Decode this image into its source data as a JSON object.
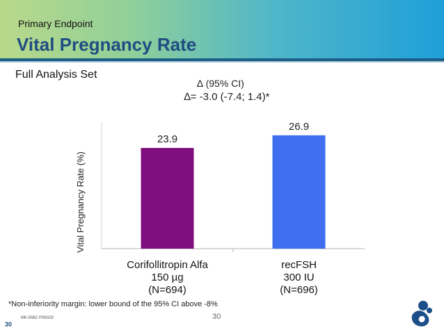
{
  "header": {
    "subtitle": "Primary Endpoint",
    "title": "Vital Pregnancy Rate"
  },
  "analysis_set": "Full Analysis Set",
  "delta": {
    "ci_label": "∆ (95% CI)",
    "value_label": "∆= -3.0 (-7.4; 1.4)*"
  },
  "chart_data": {
    "type": "bar",
    "title": "",
    "xlabel": "",
    "ylabel": "Vital Pregnancy Rate (%)",
    "ylim": [
      0,
      30
    ],
    "grid": false,
    "categories": [
      {
        "lines": [
          "Corifollitropin Alfa",
          "150 µg",
          "(N=694)"
        ]
      },
      {
        "lines": [
          "recFSH",
          "300 IU",
          "(N=696)"
        ]
      }
    ],
    "values": [
      23.9,
      26.9
    ],
    "data_labels": [
      "23.9",
      "26.9"
    ],
    "colors": [
      "#7f0f7e",
      "#3f6ff0"
    ]
  },
  "footnote": "*Non-inferiority margin: lower bound of the 95% CI above -8%",
  "page_number_center": "30",
  "document_code": "MK-8962 P06029",
  "page_number_left": "30",
  "logo_icon": "merck-logo-icon"
}
